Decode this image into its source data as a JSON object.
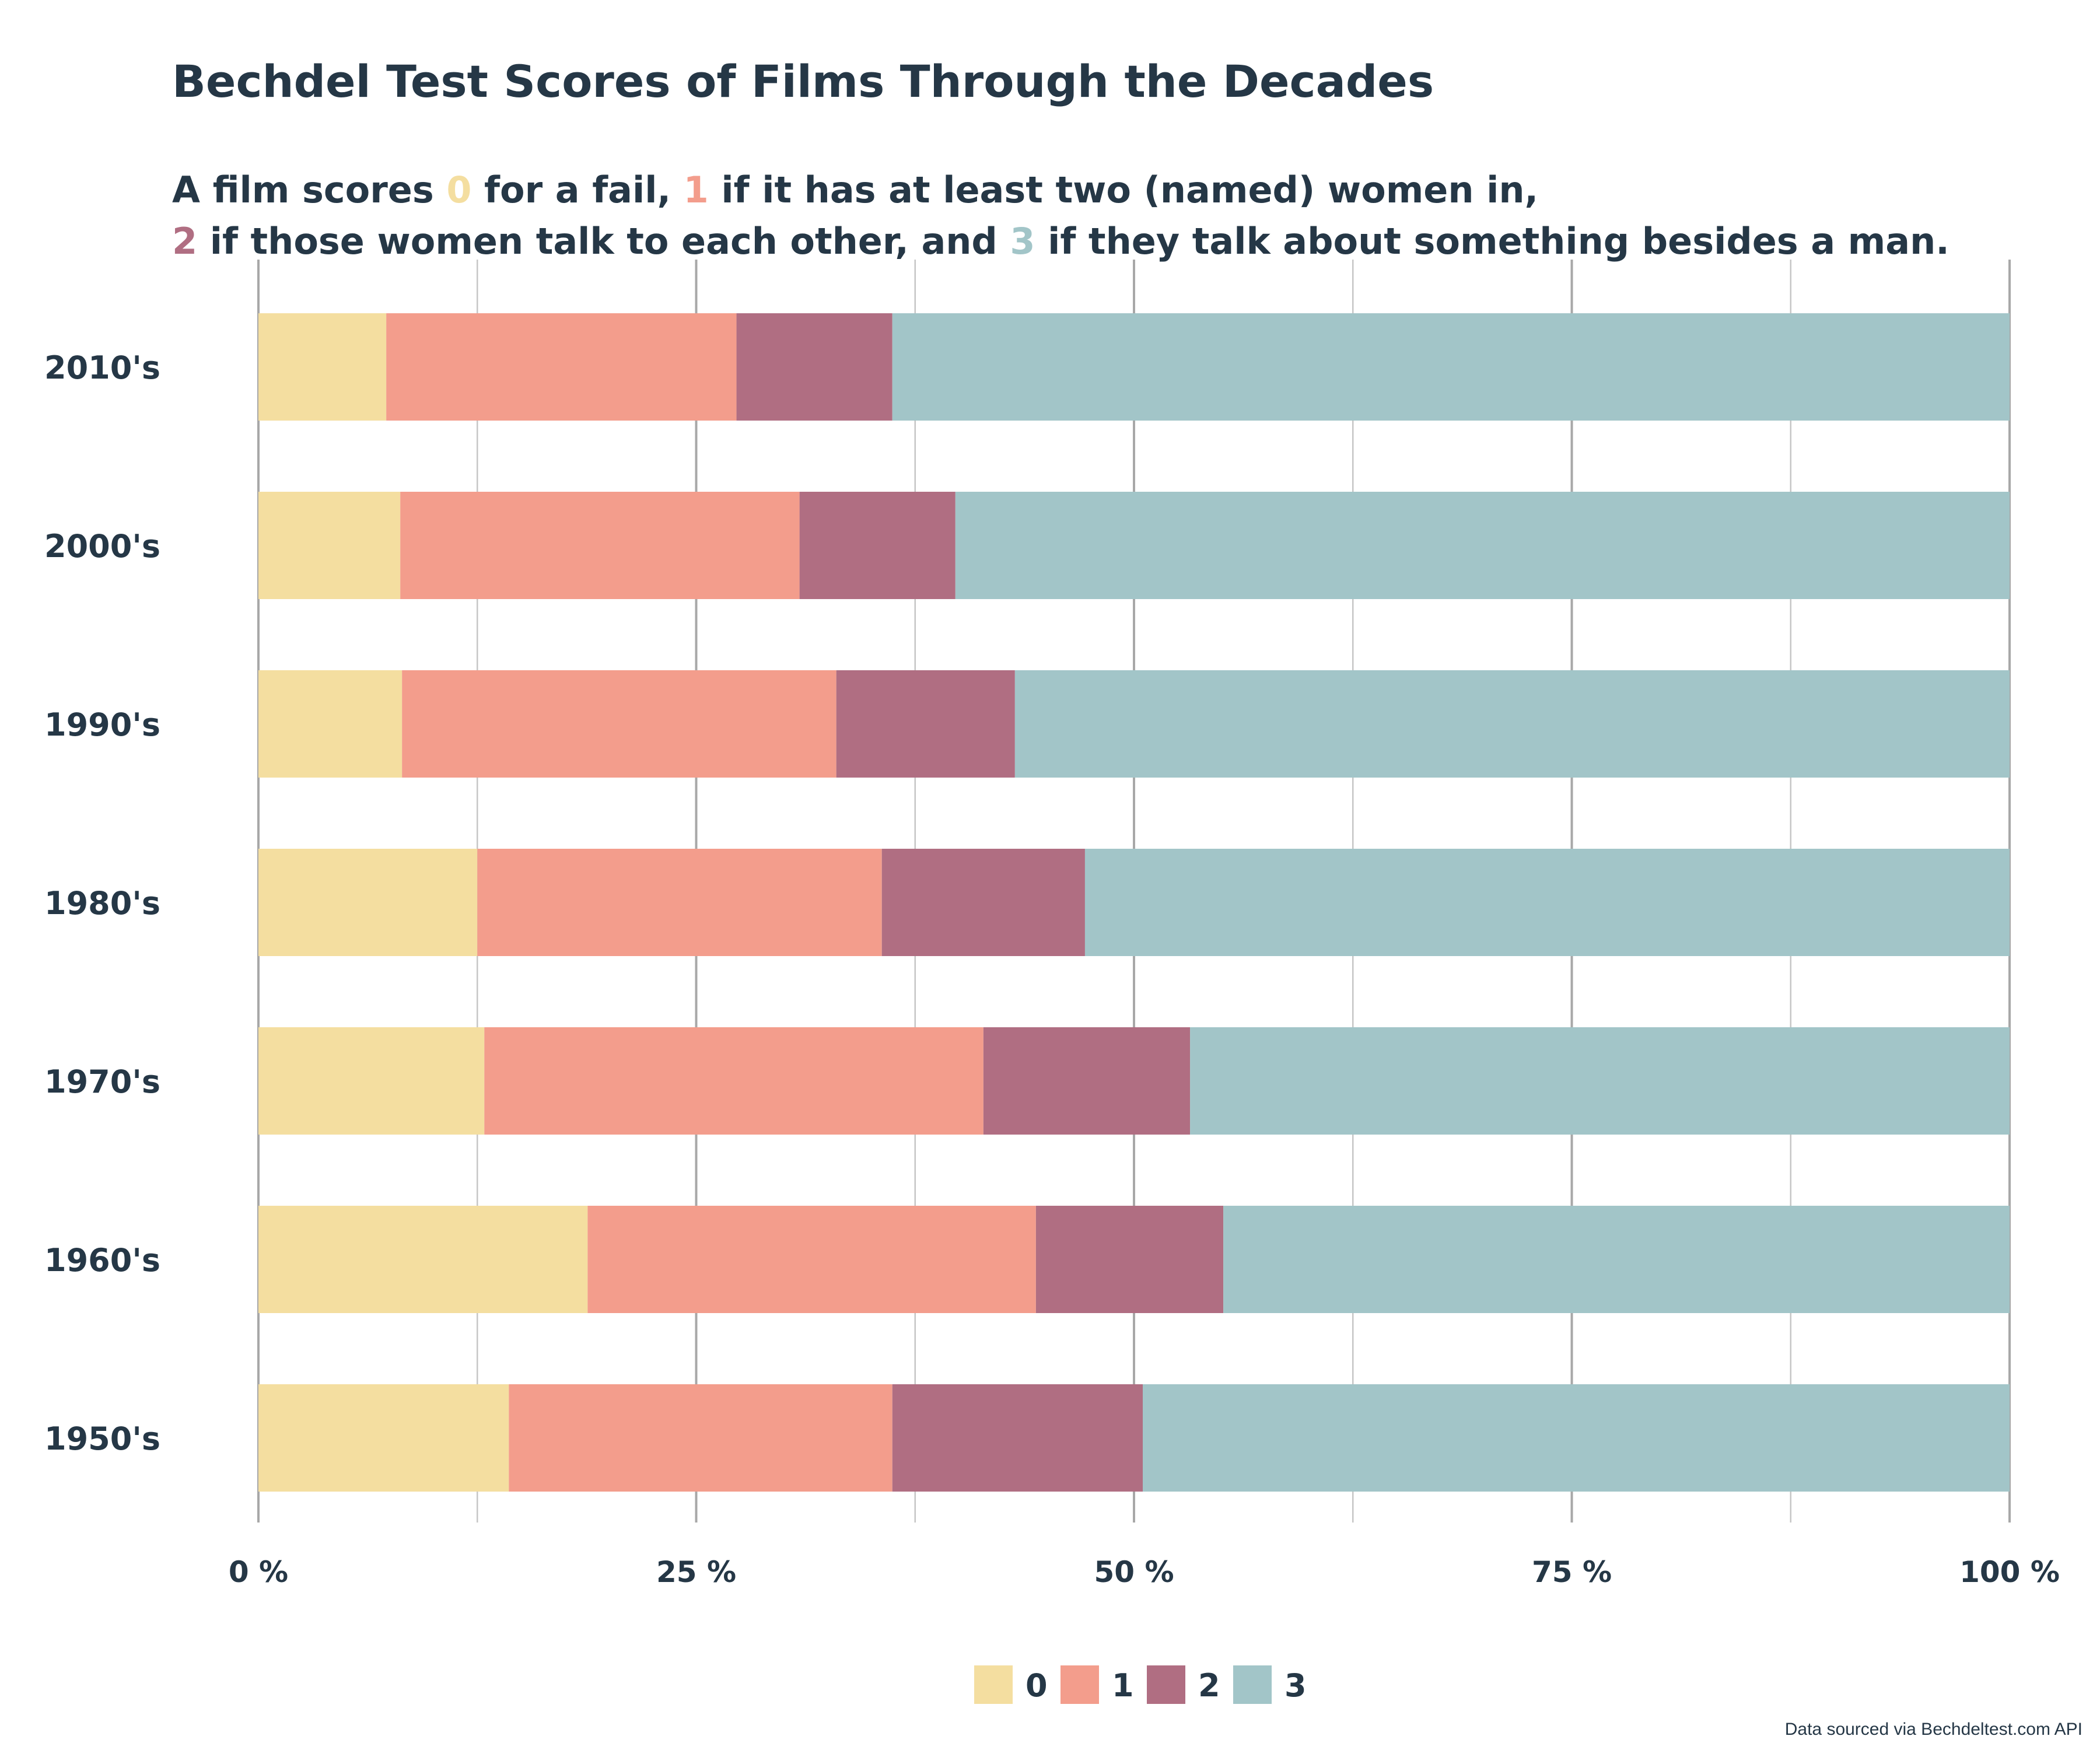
{
  "chart_data": {
    "type": "bar",
    "orientation": "horizontal",
    "stacked": true,
    "normalized": true,
    "title": "Bechdel Test Scores of Films Through the Decades",
    "subtitle": {
      "line1": {
        "a": "A film scores ",
        "n0": "0",
        "b": " for a fail, ",
        "n1": "1",
        "c": " if it has at least two (named) women in,"
      },
      "line2": {
        "n2": "2",
        "d": " if those women talk to each other, and ",
        "n3": "3",
        "e": " if they talk about something besides a man."
      }
    },
    "categories": [
      "2010's",
      "2000's",
      "1990's",
      "1980's",
      "1970's",
      "1960's",
      "1950's"
    ],
    "series": [
      {
        "name": "0",
        "color": "#f4dea0",
        "values": [
          7.3,
          8.1,
          8.2,
          12.5,
          12.9,
          18.8,
          14.3
        ]
      },
      {
        "name": "1",
        "color": "#f39d8c",
        "values": [
          20.0,
          22.8,
          24.8,
          23.1,
          28.5,
          25.6,
          21.9
        ]
      },
      {
        "name": "2",
        "color": "#b06e82",
        "values": [
          8.9,
          8.9,
          10.2,
          11.6,
          11.8,
          10.7,
          14.3
        ]
      },
      {
        "name": "3",
        "color": "#a2c5c8",
        "values": [
          63.8,
          60.2,
          56.8,
          52.8,
          46.8,
          44.9,
          49.5
        ]
      }
    ],
    "x_ticks": [
      "0 %",
      "25 %",
      "50 %",
      "75 %",
      "100 %"
    ],
    "xlim": [
      0,
      100
    ],
    "grid": true,
    "legend_position": "bottom",
    "caption": "Data sourced via Bechdeltest.com API"
  }
}
